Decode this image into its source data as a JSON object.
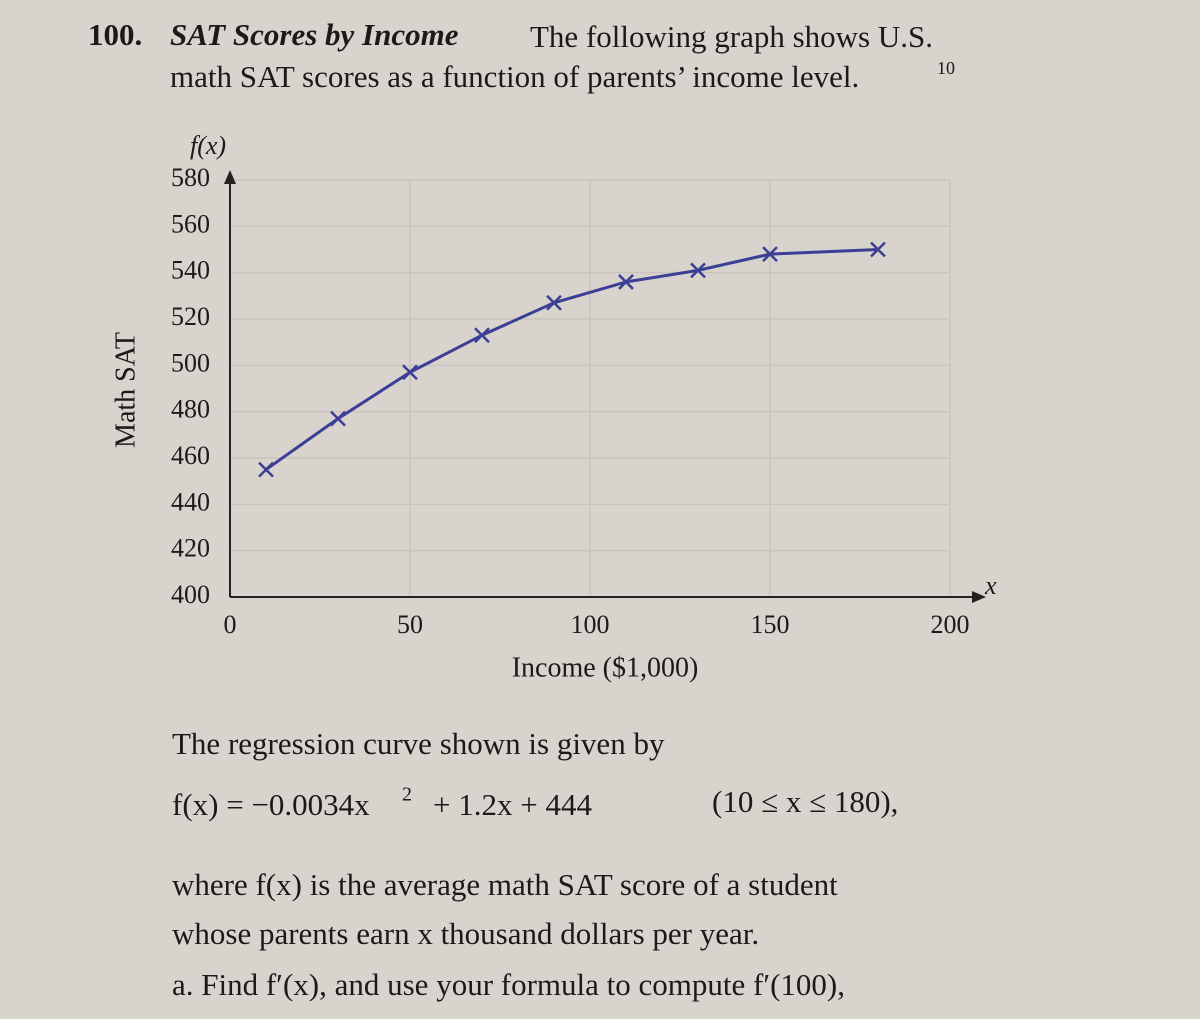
{
  "problem": {
    "number": "100.",
    "heading": "SAT Scores by Income",
    "intro_1": "The following graph shows U.S.",
    "intro_2": "math SAT scores as a function of parents’ income level.",
    "footnote": "10",
    "regression_intro": "The regression curve shown is given by",
    "formula_a": "f(x) = −0.0034x",
    "formula_sup": "2",
    "formula_b": "+ 1.2x + 444",
    "formula_domain": "(10 ≤ x ≤ 180),",
    "text_1": "where f(x) is the average math SAT score of a student",
    "text_2": "whose parents earn x thousand dollars per year.",
    "text_3": "a. Find f′(x), and use your formula to compute f′(100),"
  },
  "chart_data": {
    "type": "line",
    "y_axis_name": "f(x)",
    "y_label": "Math SAT",
    "x_axis_name": "x",
    "x_label": "Income ($1,000)",
    "x": [
      10,
      30,
      50,
      70,
      90,
      110,
      130,
      150,
      180
    ],
    "series": [
      {
        "color": "#3b3f96",
        "values": [
          455,
          477,
          497,
          513,
          527,
          536,
          541,
          548,
          550
        ]
      }
    ],
    "xlim": [
      0,
      200
    ],
    "xticks": [
      0,
      50,
      100,
      150,
      200
    ],
    "ylim": [
      400,
      580
    ],
    "yticks": [
      400,
      420,
      440,
      460,
      480,
      500,
      520,
      540,
      560,
      580
    ],
    "grid": true
  }
}
